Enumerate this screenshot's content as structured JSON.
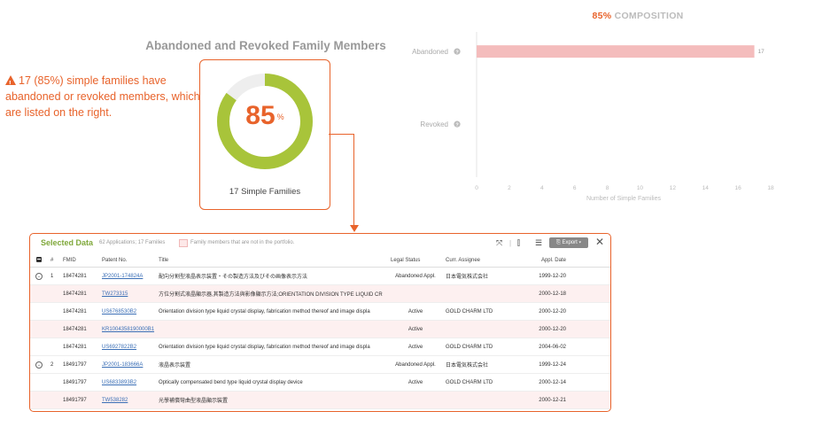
{
  "summary": {
    "warning_text": "17 (85%) simple families have abandoned or revoked members, which are listed on the right.",
    "section_title": "Abandoned and Revoked Family Members",
    "donut_value": "85",
    "donut_unit": "%",
    "donut_fraction": 0.85,
    "donut_caption": "17 Simple Families",
    "accent_color": "#e8632b",
    "fill_color": "#a8c43a"
  },
  "chart_data": {
    "type": "bar",
    "orientation": "horizontal",
    "title_accent": "85%",
    "title_rest": " COMPOSITION",
    "categories": [
      "Abandoned",
      "Revoked"
    ],
    "values": [
      17,
      0
    ],
    "value_labels": [
      "17",
      ""
    ],
    "xlabel": "Number of Simple Families",
    "xlim": [
      0,
      18
    ],
    "xticks": [
      "0",
      "2",
      "4",
      "6",
      "8",
      "10",
      "12",
      "14",
      "16",
      "18"
    ],
    "help_icon": "question-circle-icon",
    "bar_color": "#f4bcbc",
    "grid": true
  },
  "table": {
    "title": "Selected Data",
    "subtitle": "62 Applications; 17 Families",
    "legend_text": "Family members that are not in the portfolio.",
    "export_label": "Export",
    "columns": [
      "#",
      "FMID",
      "Patent No.",
      "Title",
      "Legal Status",
      "Curr. Assignee",
      "Appl. Date"
    ],
    "rows": [
      {
        "num": "1",
        "fmid": "18474281",
        "patent": "JP2001-174824A",
        "title": "配向分割型液晶表示装置・その製造方法及びその画像表示方法",
        "status": "Abandoned Appl.",
        "assignee": "日本電気株式会社",
        "date": "1999-12-20"
      },
      {
        "num": "",
        "fmid": "18474281",
        "patent": "TW273315",
        "title": "方位分割式液晶顯示器,其製造方法與影像顯示方法;ORIENTATION DIVISION TYPE LIQUID CR",
        "status": "",
        "assignee": "",
        "date": "2000-12-18"
      },
      {
        "num": "",
        "fmid": "18474281",
        "patent": "US6768530B2",
        "title": "Orientation division type liquid crystal display, fabrication method thereof and image displa",
        "status": "Active",
        "assignee": "GOLD CHARM LTD",
        "date": "2000-12-20"
      },
      {
        "num": "",
        "fmid": "18474281",
        "patent": "KR1004358190000B1",
        "title": "",
        "status": "Active",
        "assignee": "",
        "date": "2000-12-20"
      },
      {
        "num": "",
        "fmid": "18474281",
        "patent": "US6927822B2",
        "title": "Orientation division type liquid crystal display, fabrication method thereof and image displa",
        "status": "Active",
        "assignee": "GOLD CHARM LTD",
        "date": "2004-06-02"
      },
      {
        "num": "2",
        "fmid": "18491797",
        "patent": "JP2001-183666A",
        "title": "液晶表示装置",
        "status": "Abandoned Appl.",
        "assignee": "日本電気株式会社",
        "date": "1999-12-24"
      },
      {
        "num": "",
        "fmid": "18491797",
        "patent": "US6833893B2",
        "title": "Optically compensated bend type liquid crystal display device",
        "status": "Active",
        "assignee": "GOLD CHARM LTD",
        "date": "2000-12-14"
      },
      {
        "num": "",
        "fmid": "18491797",
        "patent": "TW538282",
        "title": "光學補償彎曲型液晶顯示裝置",
        "status": "",
        "assignee": "",
        "date": "2000-12-21"
      }
    ]
  }
}
